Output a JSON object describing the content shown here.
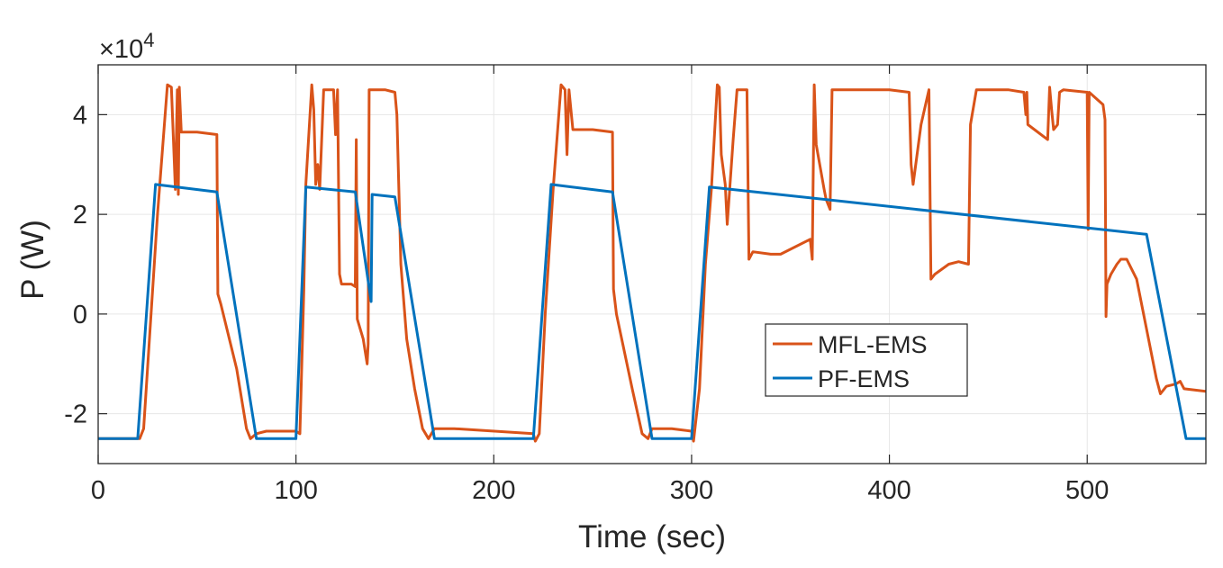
{
  "chart_data": {
    "type": "line",
    "title": "",
    "xlabel": "Time (sec)",
    "ylabel": "P (W)",
    "y_multiplier_label": "×10",
    "y_multiplier_exponent": "4",
    "xlim": [
      0,
      560
    ],
    "ylim": [
      -3,
      5
    ],
    "xticks": [
      0,
      100,
      200,
      300,
      400,
      500
    ],
    "yticks": [
      -2,
      0,
      2,
      4
    ],
    "xtick_labels": [
      "0",
      "100",
      "200",
      "300",
      "400",
      "500"
    ],
    "ytick_labels": [
      "-2",
      "0",
      "2",
      "4"
    ],
    "grid": true,
    "legend_position": "center-right",
    "series": [
      {
        "name": "MFL-EMS",
        "color": "#d95319",
        "points": [
          [
            0,
            -2.5
          ],
          [
            18,
            -2.5
          ],
          [
            21,
            -2.5
          ],
          [
            23,
            -2.3
          ],
          [
            30,
            2.0
          ],
          [
            35,
            4.6
          ],
          [
            37,
            4.55
          ],
          [
            39,
            2.5
          ],
          [
            40,
            4.5
          ],
          [
            40.5,
            2.4
          ],
          [
            41,
            4.55
          ],
          [
            42,
            3.65
          ],
          [
            50,
            3.65
          ],
          [
            60,
            3.6
          ],
          [
            60.5,
            0.4
          ],
          [
            62,
            0.2
          ],
          [
            70,
            -1.1
          ],
          [
            75,
            -2.3
          ],
          [
            77,
            -2.5
          ],
          [
            80,
            -2.4
          ],
          [
            85,
            -2.35
          ],
          [
            100,
            -2.35
          ],
          [
            102,
            -2.4
          ],
          [
            104,
            0.5
          ],
          [
            105,
            2.6
          ],
          [
            108,
            4.6
          ],
          [
            109,
            4.1
          ],
          [
            110,
            2.6
          ],
          [
            111,
            3.0
          ],
          [
            112,
            2.5
          ],
          [
            113,
            3.5
          ],
          [
            114,
            4.5
          ],
          [
            119,
            4.5
          ],
          [
            120,
            3.6
          ],
          [
            121,
            4.5
          ],
          [
            122,
            0.8
          ],
          [
            123,
            0.6
          ],
          [
            128,
            0.6
          ],
          [
            130,
            0.55
          ],
          [
            130.5,
            3.5
          ],
          [
            131,
            -0.1
          ],
          [
            134,
            -0.5
          ],
          [
            136,
            -1.0
          ],
          [
            136.5,
            -0.6
          ],
          [
            137,
            4.5
          ],
          [
            145,
            4.5
          ],
          [
            150,
            4.45
          ],
          [
            151,
            4.0
          ],
          [
            153,
            1.0
          ],
          [
            156,
            -0.5
          ],
          [
            160,
            -1.5
          ],
          [
            164,
            -2.3
          ],
          [
            167,
            -2.5
          ],
          [
            170,
            -2.3
          ],
          [
            180,
            -2.3
          ],
          [
            220,
            -2.4
          ],
          [
            221,
            -2.55
          ],
          [
            223,
            -2.4
          ],
          [
            226,
            0.0
          ],
          [
            230,
            2.5
          ],
          [
            234,
            4.6
          ],
          [
            236,
            4.5
          ],
          [
            237,
            3.2
          ],
          [
            238,
            4.5
          ],
          [
            240,
            3.7
          ],
          [
            250,
            3.7
          ],
          [
            260,
            3.65
          ],
          [
            260.5,
            0.5
          ],
          [
            262,
            0.0
          ],
          [
            270,
            -1.5
          ],
          [
            275,
            -2.4
          ],
          [
            278,
            -2.5
          ],
          [
            280,
            -2.3
          ],
          [
            290,
            -2.3
          ],
          [
            300,
            -2.35
          ],
          [
            301,
            -2.55
          ],
          [
            304,
            -1.5
          ],
          [
            307,
            1.0
          ],
          [
            310,
            2.5
          ],
          [
            313,
            4.6
          ],
          [
            314,
            4.55
          ],
          [
            315,
            3.2
          ],
          [
            317,
            2.6
          ],
          [
            318,
            1.8
          ],
          [
            321,
            3.5
          ],
          [
            323,
            4.5
          ],
          [
            328,
            4.5
          ],
          [
            329,
            1.1
          ],
          [
            331,
            1.25
          ],
          [
            340,
            1.2
          ],
          [
            345,
            1.2
          ],
          [
            360,
            1.5
          ],
          [
            361,
            1.1
          ],
          [
            362,
            4.6
          ],
          [
            363,
            3.4
          ],
          [
            367,
            2.5
          ],
          [
            368,
            2.3
          ],
          [
            370,
            2.1
          ],
          [
            371,
            4.5
          ],
          [
            385,
            4.5
          ],
          [
            400,
            4.5
          ],
          [
            410,
            4.45
          ],
          [
            411,
            3.0
          ],
          [
            412,
            2.6
          ],
          [
            416,
            3.8
          ],
          [
            420,
            4.5
          ],
          [
            421,
            0.7
          ],
          [
            423,
            0.8
          ],
          [
            430,
            1.0
          ],
          [
            435,
            1.05
          ],
          [
            440,
            1.0
          ],
          [
            441,
            3.8
          ],
          [
            444,
            4.5
          ],
          [
            460,
            4.5
          ],
          [
            468,
            4.45
          ],
          [
            469,
            4.0
          ],
          [
            469.5,
            4.45
          ],
          [
            470,
            3.8
          ],
          [
            480,
            3.5
          ],
          [
            481,
            4.55
          ],
          [
            482,
            4.1
          ],
          [
            483,
            3.7
          ],
          [
            485,
            3.8
          ],
          [
            486,
            4.45
          ],
          [
            488,
            4.5
          ],
          [
            500,
            4.45
          ],
          [
            500.5,
            1.7
          ],
          [
            501,
            4.45
          ],
          [
            508,
            4.2
          ],
          [
            509,
            3.9
          ],
          [
            509.5,
            -0.05
          ],
          [
            510,
            0.6
          ],
          [
            512,
            0.8
          ],
          [
            515,
            1.0
          ],
          [
            517,
            1.1
          ],
          [
            520,
            1.1
          ],
          [
            525,
            0.7
          ],
          [
            530,
            -0.3
          ],
          [
            535,
            -1.3
          ],
          [
            537,
            -1.6
          ],
          [
            540,
            -1.45
          ],
          [
            545,
            -1.4
          ],
          [
            547,
            -1.35
          ],
          [
            549,
            -1.5
          ],
          [
            560,
            -1.55
          ]
        ]
      },
      {
        "name": "PF-EMS",
        "color": "#0072bd",
        "points": [
          [
            0,
            -2.5
          ],
          [
            20,
            -2.5
          ],
          [
            29,
            2.6
          ],
          [
            60,
            2.45
          ],
          [
            80,
            -2.5
          ],
          [
            100,
            -2.5
          ],
          [
            105,
            2.55
          ],
          [
            130,
            2.45
          ],
          [
            138,
            0.25
          ],
          [
            138.5,
            2.4
          ],
          [
            150,
            2.35
          ],
          [
            170,
            -2.5
          ],
          [
            220,
            -2.5
          ],
          [
            229,
            2.6
          ],
          [
            260,
            2.45
          ],
          [
            280,
            -2.5
          ],
          [
            300,
            -2.5
          ],
          [
            309,
            2.55
          ],
          [
            530,
            1.6
          ],
          [
            550,
            -2.5
          ],
          [
            560,
            -2.5
          ]
        ]
      }
    ]
  }
}
